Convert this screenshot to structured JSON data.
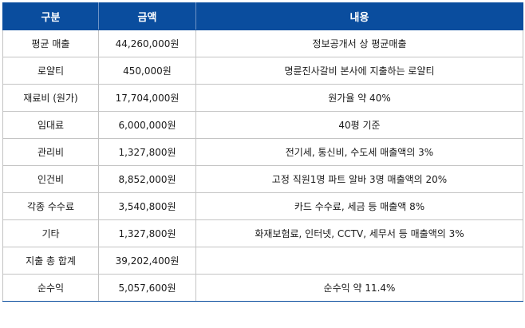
{
  "header": {
    "col_category": "구분",
    "col_amount": "금액",
    "col_content": "내용"
  },
  "colors": {
    "header_bg": "#0a4d9e",
    "header_text": "#ffffff",
    "grid": "#c4c4c4"
  },
  "rows": [
    {
      "category": "평균 매출",
      "amount": "44,260,000원",
      "content": "정보공개서 상 평균매출"
    },
    {
      "category": "로얄티",
      "amount": "450,000원",
      "content": "명륜진사갈비 본사에 지출하는 로얄티"
    },
    {
      "category": "재료비 (원가)",
      "amount": "17,704,000원",
      "content": "원가율 약 40%"
    },
    {
      "category": "임대료",
      "amount": "6,000,000원",
      "content": "40평 기준"
    },
    {
      "category": "관리비",
      "amount": "1,327,800원",
      "content": "전기세, 통신비, 수도세 매출액의 3%"
    },
    {
      "category": "인건비",
      "amount": "8,852,000원",
      "content": "고정 직원1명 파트 알바 3명 매출액의 20%"
    },
    {
      "category": "각종 수수료",
      "amount": "3,540,800원",
      "content": "카드 수수료, 세금 등 매출액 8%"
    },
    {
      "category": "기타",
      "amount": "1,327,800원",
      "content": "화재보험료, 인터넷, CCTV, 세무서 등 매출액의 3%"
    },
    {
      "category": "지출 총 합계",
      "amount": "39,202,400원",
      "content": ""
    },
    {
      "category": "순수익",
      "amount": "5,057,600원",
      "content": "순수익 약 11.4%"
    }
  ]
}
